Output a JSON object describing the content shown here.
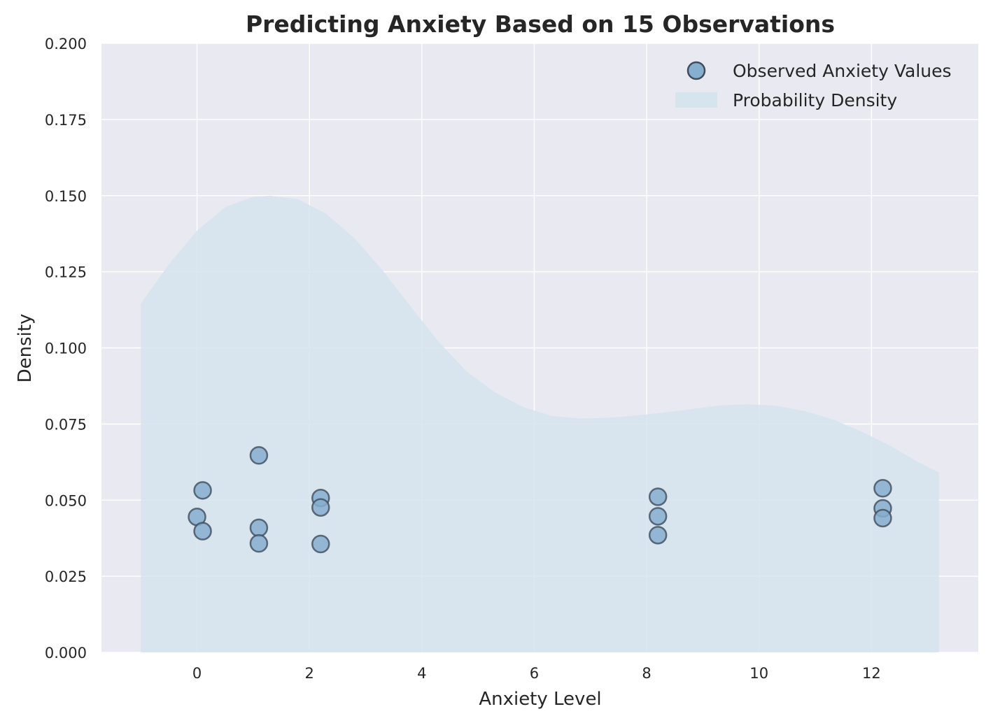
{
  "chart_data": {
    "type": "scatter",
    "title": "Predicting Anxiety Based on 15 Observations",
    "xlabel": "Anxiety Level",
    "ylabel": "Density",
    "xlim": [
      -1.7,
      13.9
    ],
    "ylim": [
      0.0,
      0.2
    ],
    "xticks": [
      0,
      2,
      4,
      6,
      8,
      10,
      12
    ],
    "xtick_labels": [
      "0",
      "2",
      "4",
      "6",
      "8",
      "10",
      "12"
    ],
    "yticks": [
      0.0,
      0.025,
      0.05,
      0.075,
      0.1,
      0.125,
      0.15,
      0.175,
      0.2
    ],
    "ytick_labels": [
      "0.000",
      "0.025",
      "0.050",
      "0.075",
      "0.100",
      "0.125",
      "0.150",
      "0.175",
      "0.200"
    ],
    "grid": true,
    "legend_position": "top-right",
    "colors": {
      "plot_background": "#e9e9f1",
      "grid": "#ffffff",
      "density_fill": "#d6e4ed",
      "point_fill": "#86aecf",
      "point_edge": "#3f4d5c"
    },
    "series": [
      {
        "name": "Observed Anxiety Values",
        "kind": "scatter",
        "points": [
          {
            "x": 0.0,
            "y": 0.0445
          },
          {
            "x": 0.1,
            "y": 0.0532
          },
          {
            "x": 0.1,
            "y": 0.0398
          },
          {
            "x": 1.1,
            "y": 0.0647
          },
          {
            "x": 1.1,
            "y": 0.0409
          },
          {
            "x": 1.1,
            "y": 0.0358
          },
          {
            "x": 2.2,
            "y": 0.0507
          },
          {
            "x": 2.2,
            "y": 0.0476
          },
          {
            "x": 2.2,
            "y": 0.0356
          },
          {
            "x": 8.2,
            "y": 0.0511
          },
          {
            "x": 8.2,
            "y": 0.0447
          },
          {
            "x": 8.2,
            "y": 0.0385
          },
          {
            "x": 12.2,
            "y": 0.0539
          },
          {
            "x": 12.2,
            "y": 0.0473
          },
          {
            "x": 12.2,
            "y": 0.0441
          }
        ]
      },
      {
        "name": "Probability Density",
        "kind": "area",
        "x": [
          -1.0,
          -0.5,
          0.0,
          0.5,
          1.0,
          1.3,
          1.8,
          2.3,
          2.8,
          3.3,
          3.8,
          4.3,
          4.8,
          5.3,
          5.8,
          6.3,
          6.8,
          7.3,
          7.8,
          8.3,
          8.8,
          9.3,
          9.8,
          10.3,
          10.8,
          11.3,
          11.8,
          12.3,
          12.8,
          13.2
        ],
        "y": [
          0.1145,
          0.1275,
          0.1385,
          0.1462,
          0.1496,
          0.15,
          0.1488,
          0.144,
          0.136,
          0.1255,
          0.1136,
          0.102,
          0.0922,
          0.0854,
          0.0806,
          0.0777,
          0.0768,
          0.077,
          0.0778,
          0.0787,
          0.0799,
          0.0811,
          0.0815,
          0.081,
          0.0793,
          0.0766,
          0.0727,
          0.0682,
          0.0628,
          0.059
        ]
      }
    ]
  }
}
